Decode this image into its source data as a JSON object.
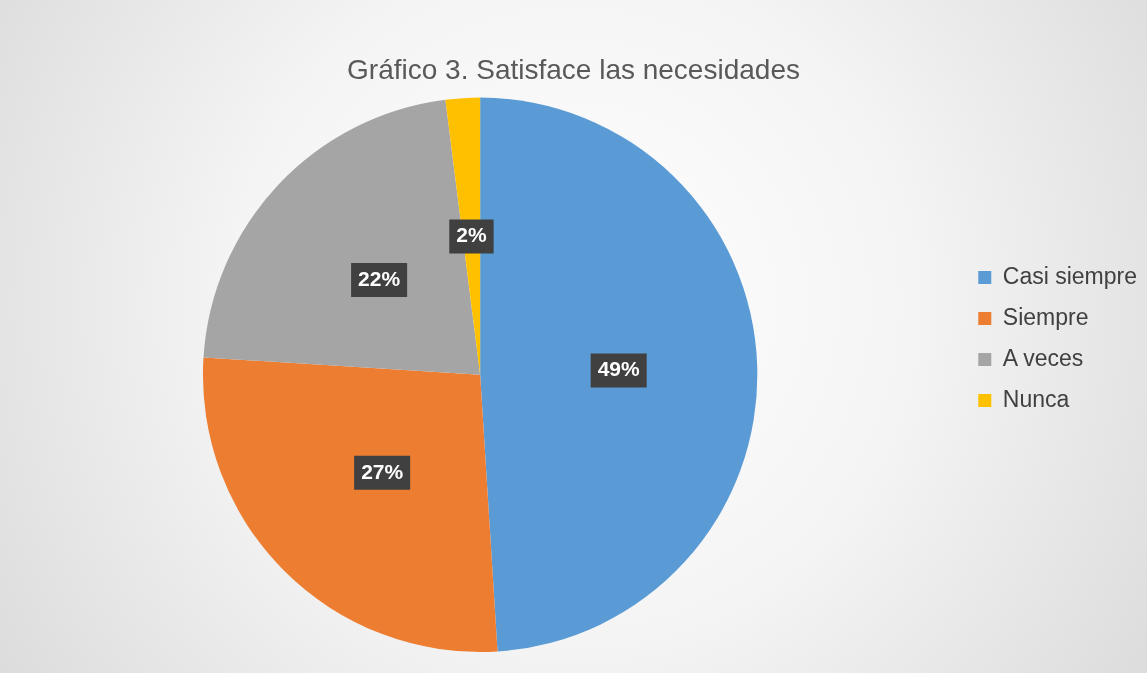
{
  "chart_data": {
    "type": "pie",
    "title": "Gráfico 3. Satisface las necesidades",
    "categories": [
      "Casi siempre",
      "Siempre",
      "A veces",
      "Nunca"
    ],
    "values": [
      49,
      27,
      22,
      2
    ],
    "colors": [
      "#5b9bd5",
      "#ed7d31",
      "#a5a5a5",
      "#ffc000"
    ],
    "value_labels": [
      "49%",
      "27%",
      "22%",
      "2%"
    ],
    "legend": "right"
  }
}
